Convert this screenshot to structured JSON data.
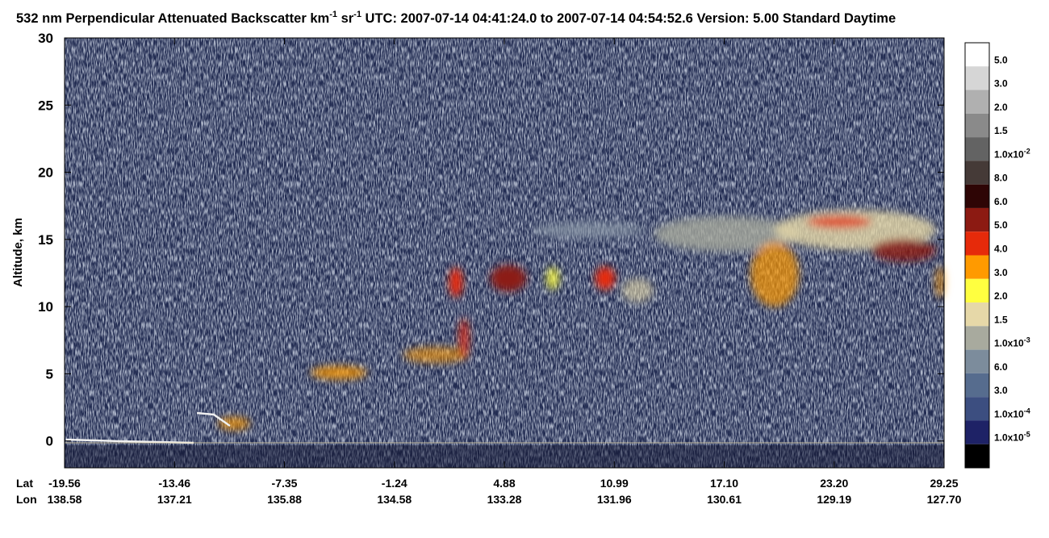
{
  "chart_data": {
    "type": "curtain",
    "title": [
      "532 nm Perpendicular Attenuated Backscatter km",
      "-1",
      " sr",
      "-1",
      "  UTC: 2007-07-14 04:41:24.0 to 2007-07-14 04:54:52.6  Version: 5.00 Standard Daytime"
    ],
    "ylabel": "Altitude, km",
    "ylim": [
      -2,
      30
    ],
    "yticks": [
      0,
      5,
      10,
      15,
      20,
      25,
      30
    ],
    "x_rows": [
      {
        "name": "Lat",
        "labels": [
          "-19.56",
          "-13.46",
          "-7.35",
          "-1.24",
          "4.88",
          "10.99",
          "17.10",
          "23.20",
          "29.25"
        ]
      },
      {
        "name": "Lon",
        "labels": [
          "138.58",
          "137.21",
          "135.88",
          "134.58",
          "133.28",
          "131.96",
          "130.61",
          "129.19",
          "127.70"
        ]
      }
    ],
    "colorbar": {
      "colors": [
        "#ffffff",
        "#d6d6d6",
        "#b0b0b0",
        "#8a8a8a",
        "#636363",
        "#453a37",
        "#2e0505",
        "#8c1a12",
        "#e62a0a",
        "#ff9a00",
        "#ffff40",
        "#e6d8a8",
        "#a8aa9e",
        "#7c8c9c",
        "#566c8e",
        "#3c4e80",
        "#1e2266",
        "#000000"
      ],
      "labels": [
        [
          "5.0"
        ],
        [
          "3.0"
        ],
        [
          "2.0"
        ],
        [
          "1.5"
        ],
        [
          "1.0x10",
          "-2"
        ],
        [
          "8.0"
        ],
        [
          "6.0"
        ],
        [
          "5.0"
        ],
        [
          "4.0"
        ],
        [
          "3.0"
        ],
        [
          "2.0"
        ],
        [
          "1.5"
        ],
        [
          "1.0x10",
          "-3"
        ],
        [
          "6.0"
        ],
        [
          "3.0"
        ],
        [
          "1.0x10",
          "-4"
        ],
        [
          "1.0x10",
          "-5"
        ]
      ]
    }
  }
}
